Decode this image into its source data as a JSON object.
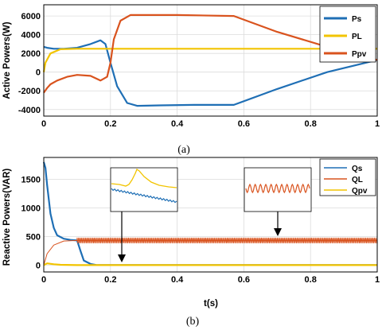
{
  "colors": {
    "blue": "#1f6fb5",
    "yellow": "#f2c400",
    "orange": "#d9531e",
    "grid": "#dcdcdc"
  },
  "chart_data": [
    {
      "type": "line",
      "caption": "(a)",
      "xlabel": "",
      "ylabel": "Active Powers(W)",
      "xlim": [
        0,
        1
      ],
      "ylim": [
        -4700,
        7200
      ],
      "xticks": [
        "0",
        "0.2",
        "0.4",
        "0.6",
        "0.8",
        "1"
      ],
      "yticks": [
        "6000",
        "4000",
        "2000",
        "0",
        "-2000",
        "-4000"
      ],
      "legend_position": "top-right",
      "grid": true,
      "series": [
        {
          "name": "Ps",
          "color": "blue",
          "x": [
            0,
            0.01,
            0.03,
            0.06,
            0.1,
            0.14,
            0.17,
            0.185,
            0.2,
            0.22,
            0.25,
            0.28,
            0.35,
            0.45,
            0.57,
            0.7,
            0.85,
            1.0
          ],
          "y": [
            2700,
            2600,
            2500,
            2500,
            2600,
            3000,
            3400,
            3000,
            1000,
            -1500,
            -3300,
            -3600,
            -3550,
            -3500,
            -3500,
            -1800,
            0,
            1300
          ]
        },
        {
          "name": "PL",
          "color": "yellow",
          "x": [
            0,
            0.005,
            0.02,
            0.05,
            0.1,
            0.5,
            1.0
          ],
          "y": [
            0,
            1000,
            2000,
            2450,
            2500,
            2500,
            2500
          ]
        },
        {
          "name": "Ppv",
          "color": "orange",
          "x": [
            0,
            0.01,
            0.02,
            0.04,
            0.07,
            0.1,
            0.14,
            0.17,
            0.19,
            0.2,
            0.21,
            0.23,
            0.26,
            0.3,
            0.4,
            0.57,
            0.7,
            0.85,
            1.0
          ],
          "y": [
            -2200,
            -1700,
            -1300,
            -900,
            -500,
            -300,
            -400,
            -900,
            -500,
            1000,
            3500,
            5500,
            6100,
            6100,
            6100,
            6000,
            4300,
            2700,
            1300
          ]
        }
      ]
    },
    {
      "type": "line",
      "caption": "(b)",
      "xlabel": "t(s)",
      "ylabel": "Reactive Powers(VAR)",
      "xlim": [
        0,
        1
      ],
      "ylim": [
        -120,
        1880
      ],
      "xticks": [
        "0",
        "0.2",
        "0.4",
        "0.6",
        "0.8",
        "1"
      ],
      "yticks": [
        "1500",
        "1000",
        "500",
        "0"
      ],
      "legend_position": "top-right",
      "grid": true,
      "series": [
        {
          "name": "Qs",
          "color": "blue",
          "x": [
            0,
            0.005,
            0.01,
            0.02,
            0.03,
            0.04,
            0.06,
            0.08,
            0.1,
            0.11,
            0.12,
            0.14,
            0.16,
            1.0
          ],
          "y": [
            1800,
            1700,
            1400,
            900,
            650,
            520,
            460,
            440,
            430,
            250,
            80,
            20,
            0,
            0
          ]
        },
        {
          "name": "QL",
          "color": "orange",
          "x": [
            0,
            0.01,
            0.03,
            0.06,
            0.1,
            1.0
          ],
          "y": [
            0,
            200,
            350,
            420,
            430,
            430
          ],
          "ripple_amplitude": 45
        },
        {
          "name": "Qpv",
          "color": "yellow",
          "x": [
            0,
            0.01,
            0.03,
            0.05,
            0.1,
            1.0
          ],
          "y": [
            0,
            30,
            15,
            5,
            0,
            0
          ]
        }
      ],
      "insets": [
        {
          "note": "zoom near t=0.2",
          "arrow_x": 0.235
        },
        {
          "note": "zoom near t=0.7",
          "arrow_x": 0.7
        }
      ]
    }
  ]
}
